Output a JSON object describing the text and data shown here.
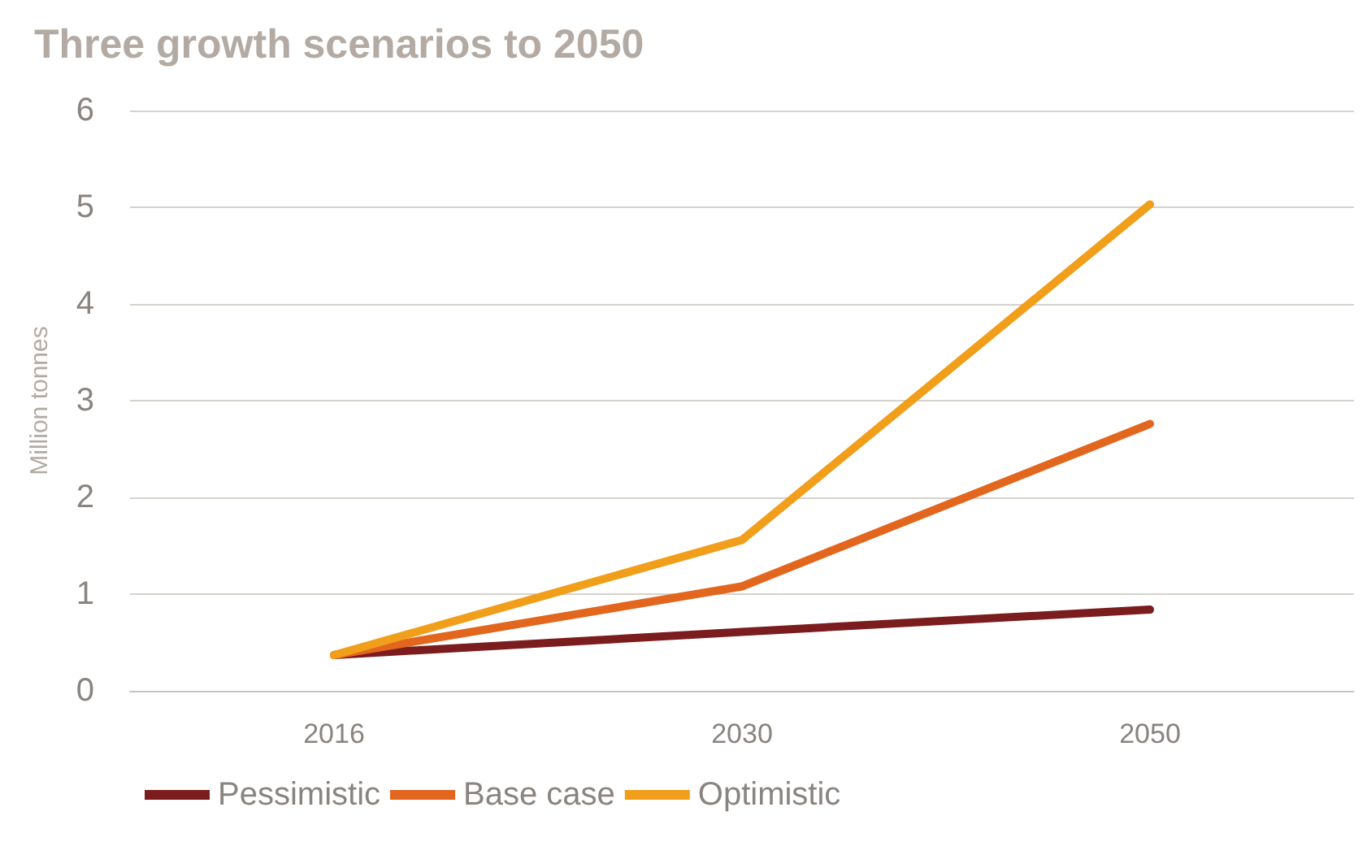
{
  "chart_data": {
    "type": "line",
    "title": "Three growth scenarios to 2050",
    "ylabel": "Million tonnes",
    "categories": [
      "2016",
      "2030",
      "2050"
    ],
    "series": [
      {
        "name": "Pessimistic",
        "color": "#7b1c1f",
        "values": [
          0.37,
          0.61,
          0.84
        ]
      },
      {
        "name": "Base case",
        "color": "#e2661d",
        "values": [
          0.37,
          1.08,
          2.76
        ]
      },
      {
        "name": "Optimistic",
        "color": "#f19e1b",
        "values": [
          0.37,
          1.56,
          5.03
        ]
      }
    ],
    "ylim": [
      0,
      6
    ],
    "yticks": [
      0,
      1,
      2,
      3,
      4,
      5,
      6
    ],
    "grid": "y",
    "legend": "bottom left",
    "marker": "none",
    "line_style": "solid"
  }
}
